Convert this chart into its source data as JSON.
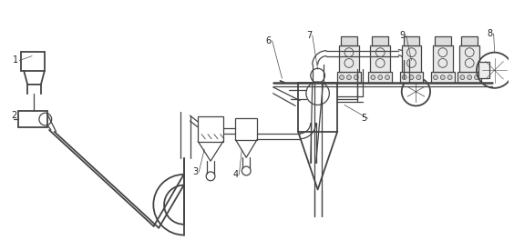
{
  "bg_color": "#ffffff",
  "lc": "#444444",
  "lw": 0.9,
  "lw2": 1.3,
  "fig_width": 5.64,
  "fig_height": 2.75,
  "dpi": 100
}
